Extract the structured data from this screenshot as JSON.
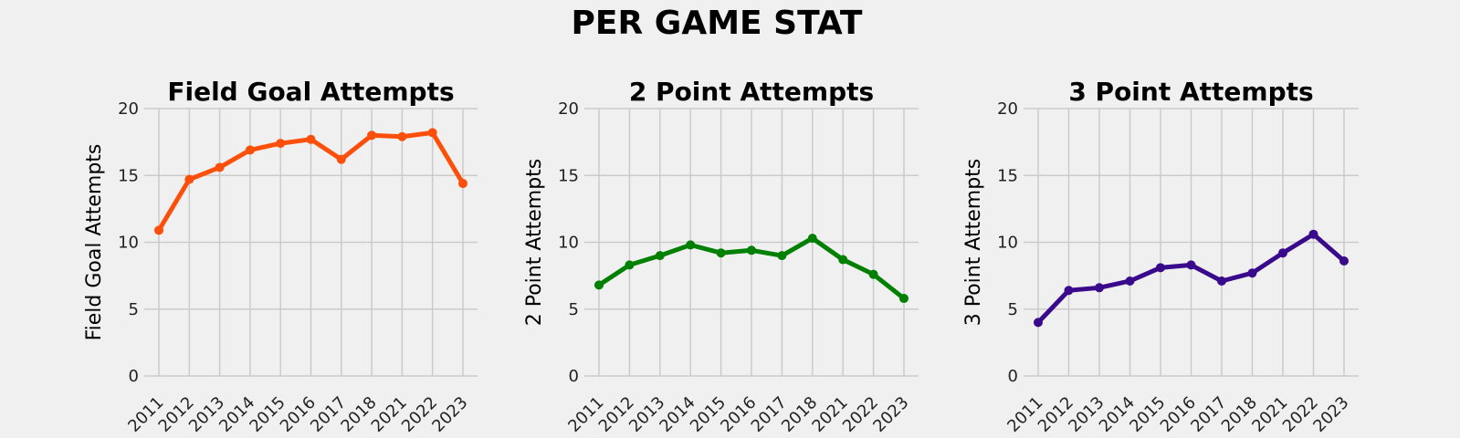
{
  "figure": {
    "title": "PER GAME STAT"
  },
  "chart_data": [
    {
      "type": "line",
      "title": "Field Goal Attempts",
      "xlabel": "",
      "ylabel": "Field Goal Attempts",
      "categories": [
        "2011",
        "2012",
        "2013",
        "2014",
        "2015",
        "2016",
        "2017",
        "2018",
        "2021",
        "2022",
        "2023"
      ],
      "values": [
        10.9,
        14.7,
        15.6,
        16.9,
        17.4,
        17.7,
        16.2,
        18.0,
        17.9,
        18.2,
        14.4
      ],
      "ylim": [
        0,
        20
      ],
      "yticks": [
        0,
        5,
        10,
        15,
        20
      ],
      "color": "#fc4f0a",
      "grid": true
    },
    {
      "type": "line",
      "title": "2 Point Attempts",
      "xlabel": "",
      "ylabel": "2 Point Attempts",
      "categories": [
        "2011",
        "2012",
        "2013",
        "2014",
        "2015",
        "2016",
        "2017",
        "2018",
        "2021",
        "2022",
        "2023"
      ],
      "values": [
        6.8,
        8.3,
        9.0,
        9.8,
        9.2,
        9.4,
        9.0,
        10.3,
        8.7,
        7.6,
        5.8
      ],
      "ylim": [
        0,
        20
      ],
      "yticks": [
        0,
        5,
        10,
        15,
        20
      ],
      "color": "#008000",
      "grid": true
    },
    {
      "type": "line",
      "title": "3 Point Attempts",
      "xlabel": "",
      "ylabel": "3 Point Attempts",
      "categories": [
        "2011",
        "2012",
        "2013",
        "2014",
        "2015",
        "2016",
        "2017",
        "2018",
        "2021",
        "2022",
        "2023"
      ],
      "values": [
        4.0,
        6.4,
        6.6,
        7.1,
        8.1,
        8.3,
        7.1,
        7.7,
        9.2,
        10.6,
        8.6
      ],
      "ylim": [
        0,
        20
      ],
      "yticks": [
        0,
        5,
        10,
        15,
        20
      ],
      "color": "#3a0a8c",
      "grid": true
    }
  ]
}
